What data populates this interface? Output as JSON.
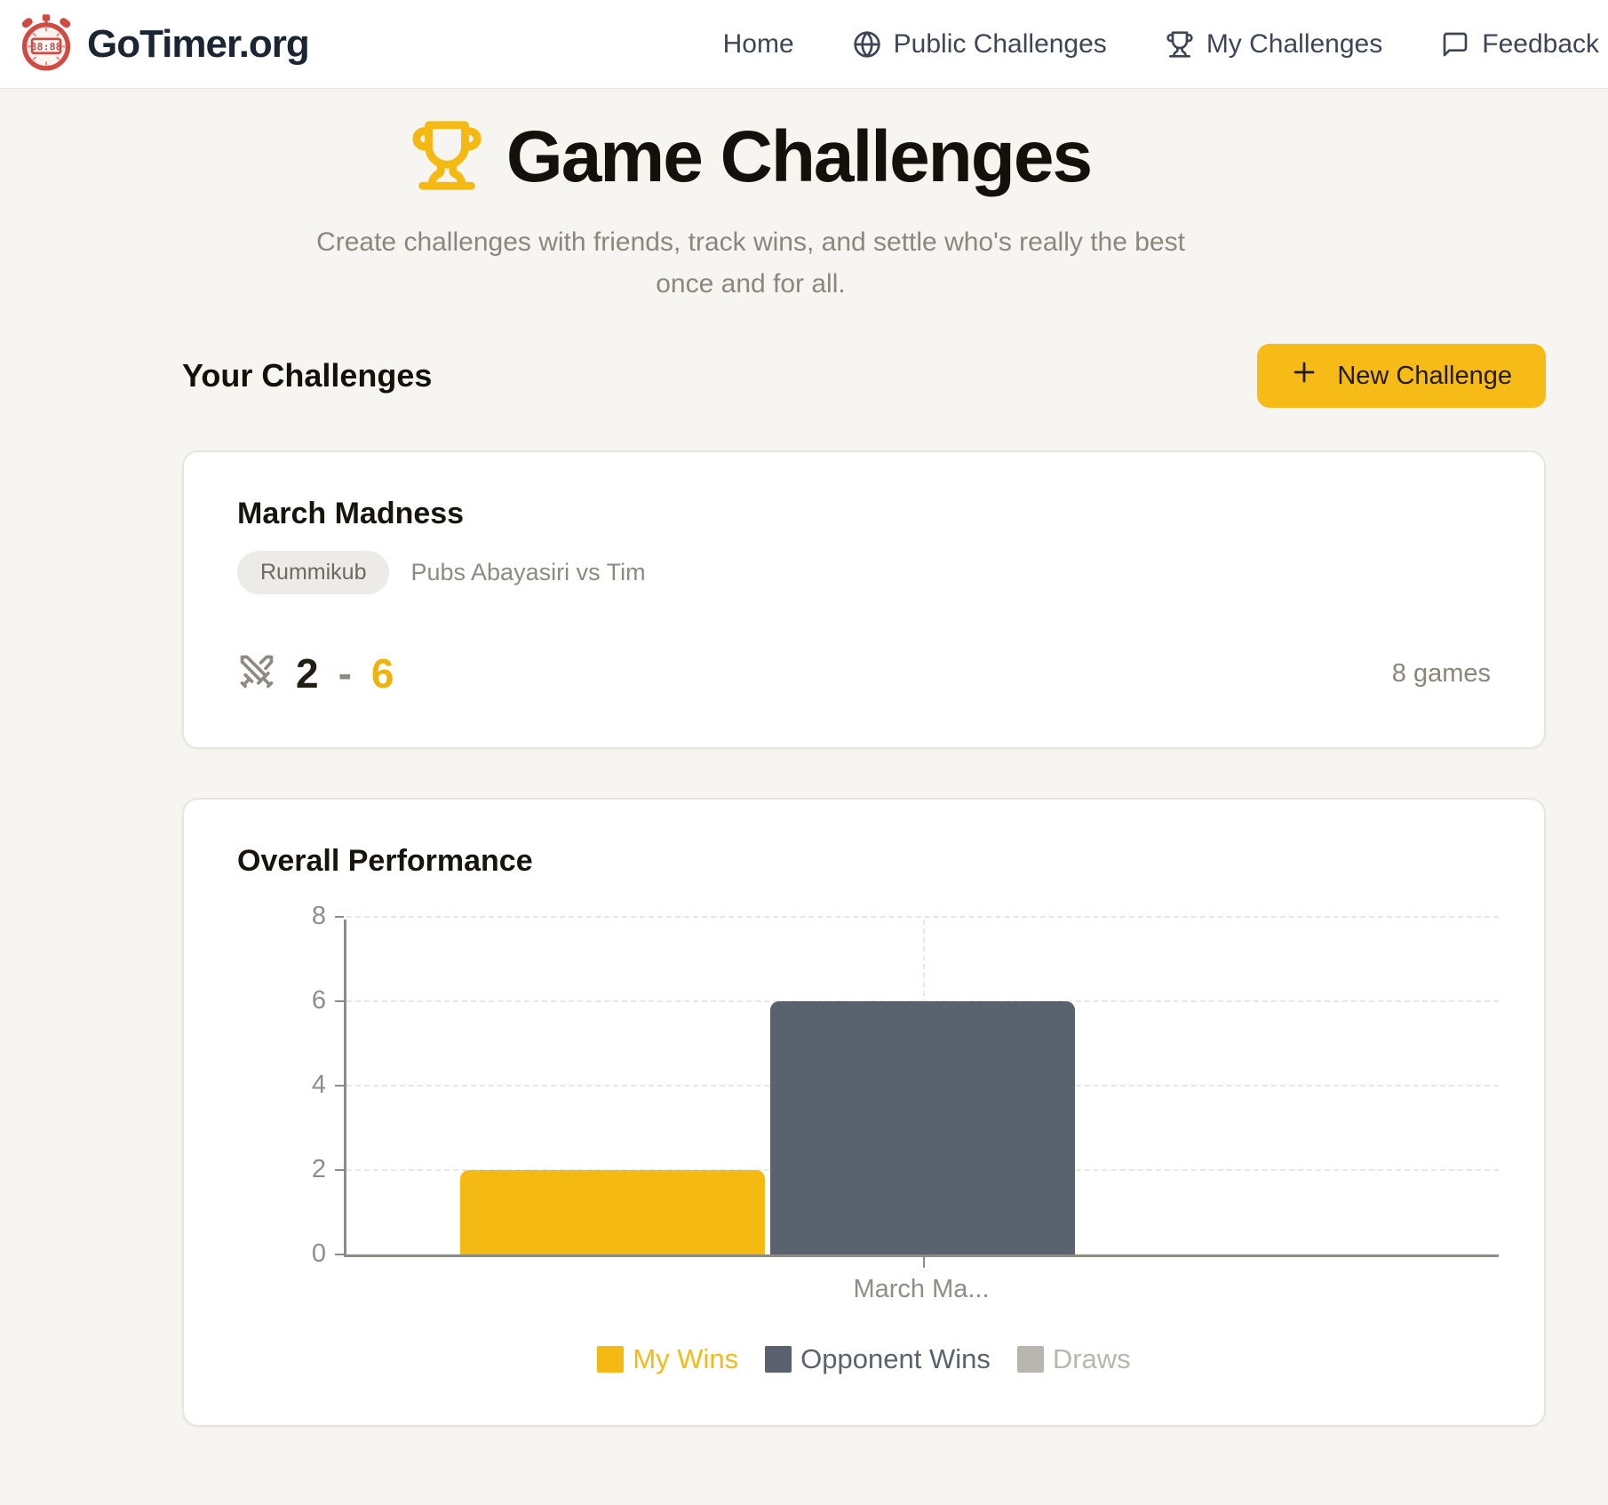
{
  "colors": {
    "accent_yellow": "#F5B914",
    "opponent_slate": "#5A6270",
    "draws_gray": "#B9B6AF",
    "page_background": "#F7F5F1",
    "logo_red": "#D14B42"
  },
  "header": {
    "brand": "GoTimer.org",
    "nav": [
      {
        "label": "Home",
        "icon": "none"
      },
      {
        "label": "Public Challenges",
        "icon": "globe-icon"
      },
      {
        "label": "My Challenges",
        "icon": "trophy-icon"
      },
      {
        "label": "Feedback",
        "icon": "message-icon"
      }
    ]
  },
  "hero": {
    "title": "Game Challenges",
    "subtitle": "Create challenges with friends, track wins, and settle who's really the best once and for all."
  },
  "your_challenges": {
    "heading": "Your Challenges",
    "new_challenge_button": "New Challenge"
  },
  "challenge_card": {
    "title": "March Madness",
    "game_tag": "Rummikub",
    "matchup": "Pubs Abayasiri vs Tim",
    "my_score": "2",
    "score_separator": "-",
    "opponent_score": "6",
    "games_count": "8 games"
  },
  "performance_card": {
    "heading": "Overall Performance",
    "chart_data": {
      "type": "bar",
      "categories": [
        "March Ma..."
      ],
      "series": [
        {
          "name": "My Wins",
          "values": [
            2
          ],
          "color": "#F5B914"
        },
        {
          "name": "Opponent Wins",
          "values": [
            6
          ],
          "color": "#5A6270"
        },
        {
          "name": "Draws",
          "values": [
            0
          ],
          "color": "#B9B6AF"
        }
      ],
      "ylim": [
        0,
        8
      ],
      "yticks": [
        0,
        2,
        4,
        6,
        8
      ],
      "xlabel": "",
      "ylabel": "",
      "grid": "dashed",
      "legend_position": "bottom"
    }
  }
}
